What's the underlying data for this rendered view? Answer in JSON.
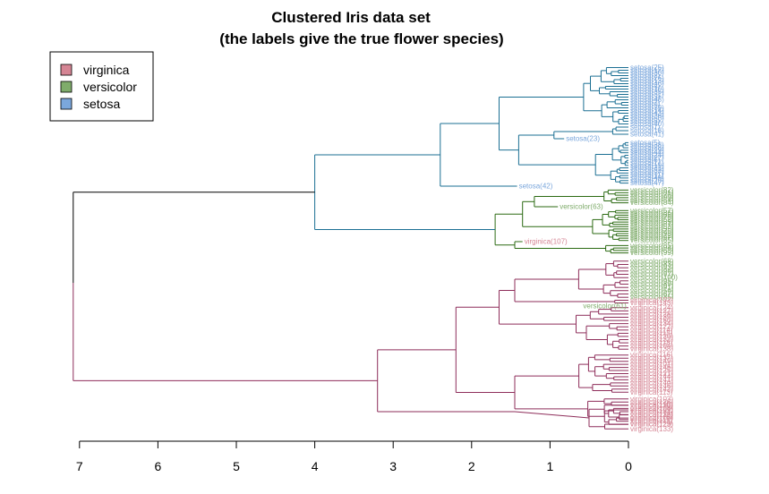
{
  "chart_data": {
    "type": "dendrogram",
    "title_line1": "Clustered Iris data set",
    "title_line2": "(the labels give the true flower species)",
    "xlabel": "",
    "ylabel": "",
    "x_axis": {
      "reversed": true,
      "range": [
        7,
        0
      ],
      "ticks": [
        {
          "value": 7,
          "label": "7"
        },
        {
          "value": 6,
          "label": "6"
        },
        {
          "value": 5,
          "label": "5"
        },
        {
          "value": 4,
          "label": "4"
        },
        {
          "value": 3,
          "label": "3"
        },
        {
          "value": 2,
          "label": "2"
        },
        {
          "value": 1,
          "label": "1"
        },
        {
          "value": 0,
          "label": "0"
        }
      ]
    },
    "grid": false,
    "legend": {
      "placement": "top-left",
      "entries": [
        {
          "label": "virginica",
          "color": "#d58594"
        },
        {
          "label": "versicolor",
          "color": "#7fac6b"
        },
        {
          "label": "setosa",
          "color": "#7ba7dc"
        }
      ]
    },
    "branch_colors": {
      "root": "#000000",
      "setosa_cluster": "#1b6f93",
      "versicolor_cluster": "#2b6a12",
      "virginica_cluster": "#8e2d5a"
    },
    "main_merges": [
      {
        "height": 7.08,
        "description": "root"
      },
      {
        "height": 4.0,
        "description": "setosa + versicolor clusters"
      },
      {
        "height": 3.2,
        "description": "virginica cluster"
      },
      {
        "height": 2.4,
        "description": "setosa cluster"
      },
      {
        "height": 1.7,
        "description": "versicolor cluster"
      },
      {
        "height": 2.2,
        "description": "virginica sub-cluster"
      }
    ],
    "visible_leaf_labels": [
      {
        "label": "setosa(42)",
        "species": "setosa",
        "height": 1.42
      },
      {
        "label": "setosa(23)",
        "species": "setosa",
        "height": 0.82
      },
      {
        "label": "versicolor(63)",
        "species": "versicolor",
        "height": 0.9
      },
      {
        "label": "virginica(107)",
        "species": "virginica",
        "height": 1.35
      },
      {
        "label": "versicolor(61)",
        "species": "versicolor",
        "height": 0.6
      },
      {
        "label": "virginica(124)",
        "species": "virginica",
        "height": 0.3
      },
      {
        "label": "virginica(132)",
        "species": "virginica",
        "height": 0.0
      },
      {
        "label": "virginica(118)",
        "species": "virginica",
        "height": 0.0
      },
      {
        "label": "setosa(1)",
        "species": "setosa",
        "height": 0.0
      },
      {
        "label": "setosa(5)",
        "species": "setosa",
        "height": 0.0
      },
      {
        "label": "versicolor(85)",
        "species": "versicolor",
        "height": 0.0
      },
      {
        "label": "versicolor(54)",
        "species": "versicolor",
        "height": 0.0
      },
      {
        "label": "versicolor(95)",
        "species": "versicolor",
        "height": 0.0
      },
      {
        "label": "virginica(126)",
        "species": "virginica",
        "height": 0.0
      }
    ]
  }
}
